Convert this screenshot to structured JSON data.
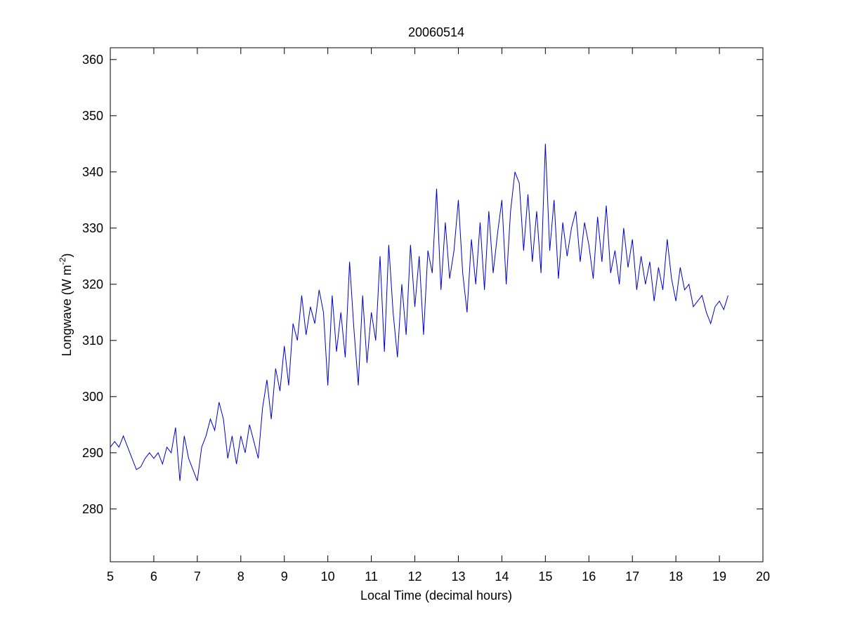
{
  "chart_data": {
    "type": "line",
    "title": "20060514",
    "xlabel": "Local Time (decimal hours)",
    "ylabel": [
      "Longwave (W m",
      "-2",
      ")"
    ],
    "xlim": [
      5,
      20
    ],
    "xticks": [
      5,
      6,
      7,
      8,
      9,
      10,
      11,
      12,
      13,
      14,
      15,
      16,
      17,
      18,
      19,
      20
    ],
    "ylim": [
      270.6,
      362.1
    ],
    "yticks": [
      280,
      290,
      300,
      310,
      320,
      330,
      340,
      350,
      360
    ],
    "series": [
      {
        "color": "#0000cc",
        "x": [
          5.0,
          5.1,
          5.2,
          5.3,
          5.4,
          5.5,
          5.6,
          5.7,
          5.8,
          5.9,
          6.0,
          6.1,
          6.2,
          6.3,
          6.4,
          6.5,
          6.6,
          6.7,
          6.8,
          6.9,
          7.0,
          7.1,
          7.2,
          7.3,
          7.4,
          7.5,
          7.6,
          7.7,
          7.8,
          7.9,
          8.0,
          8.1,
          8.2,
          8.3,
          8.4,
          8.5,
          8.6,
          8.7,
          8.8,
          8.9,
          9.0,
          9.1,
          9.2,
          9.3,
          9.4,
          9.5,
          9.6,
          9.7,
          9.8,
          9.9,
          10.0,
          10.1,
          10.2,
          10.3,
          10.4,
          10.5,
          10.6,
          10.7,
          10.8,
          10.9,
          11.0,
          11.1,
          11.2,
          11.3,
          11.4,
          11.5,
          11.6,
          11.7,
          11.8,
          11.9,
          12.0,
          12.1,
          12.2,
          12.3,
          12.4,
          12.5,
          12.6,
          12.7,
          12.8,
          12.9,
          13.0,
          13.1,
          13.2,
          13.3,
          13.4,
          13.5,
          13.6,
          13.7,
          13.8,
          13.9,
          14.0,
          14.1,
          14.2,
          14.3,
          14.4,
          14.5,
          14.6,
          14.7,
          14.8,
          14.9,
          15.0,
          15.1,
          15.2,
          15.3,
          15.4,
          15.5,
          15.6,
          15.7,
          15.8,
          15.9,
          16.0,
          16.1,
          16.2,
          16.3,
          16.4,
          16.5,
          16.6,
          16.7,
          16.8,
          16.9,
          17.0,
          17.1,
          17.2,
          17.3,
          17.4,
          17.5,
          17.6,
          17.7,
          17.8,
          17.9,
          18.0,
          18.1,
          18.2,
          18.3,
          18.4,
          18.5,
          18.6,
          18.7,
          18.8,
          18.9,
          19.0,
          19.1,
          19.2
        ],
        "values": [
          291,
          292,
          291,
          293,
          291,
          289,
          287,
          287.5,
          289,
          290,
          289,
          290,
          288,
          291,
          290,
          294.5,
          285,
          293,
          289,
          287,
          285,
          291,
          293,
          296,
          294,
          299,
          296,
          289,
          293,
          288,
          293,
          290,
          295,
          292,
          289,
          298,
          303,
          296,
          305,
          301,
          309,
          302,
          313,
          310,
          318,
          311,
          316,
          313,
          319,
          315,
          302,
          318,
          308,
          315,
          307,
          324,
          312,
          302,
          318,
          306,
          315,
          310,
          325,
          308,
          327,
          315,
          307,
          320,
          311,
          327,
          316,
          325,
          311,
          326,
          322,
          337,
          319,
          331,
          321,
          326,
          335,
          322,
          315,
          328,
          320,
          331,
          319,
          333,
          322,
          329,
          335,
          320,
          333,
          340,
          338,
          326,
          336,
          324,
          333,
          322,
          345,
          326,
          335,
          321,
          331,
          325,
          330,
          333,
          324,
          331,
          327,
          321,
          332,
          324,
          334,
          322,
          326,
          320,
          330,
          323,
          328,
          319,
          325,
          320,
          324,
          317,
          323,
          319,
          328,
          321,
          317,
          323,
          319,
          320,
          316,
          317,
          318,
          315,
          313,
          316,
          317,
          315.5,
          318
        ]
      }
    ]
  }
}
